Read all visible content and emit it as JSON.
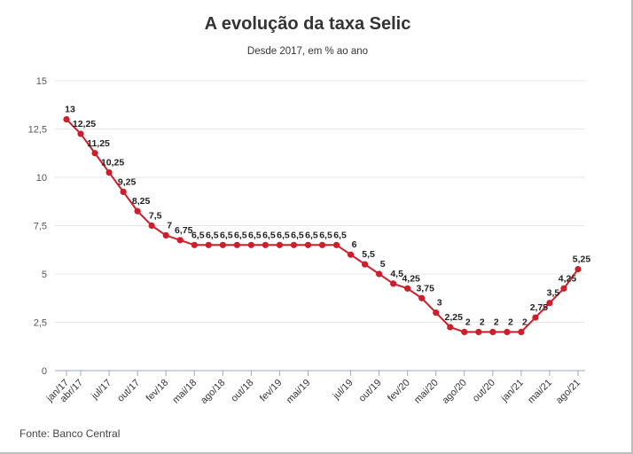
{
  "title": "A evolução da taxa Selic",
  "subtitle": "Desde 2017, em % ao ano",
  "source": "Fonte: Banco Central",
  "colors": {
    "line": "#cc1f2a",
    "grid": "#e6e6e6",
    "axis": "#9aa9c7"
  },
  "chart_data": {
    "type": "line",
    "title": "A evolução da taxa Selic",
    "subtitle": "Desde 2017, em % ao ano",
    "ylim": [
      0,
      15
    ],
    "yticks": [
      0,
      2.5,
      5,
      7.5,
      10,
      12.5,
      15
    ],
    "ytick_labels": [
      "0",
      "2,5",
      "5",
      "7,5",
      "10",
      "12,5",
      "15"
    ],
    "grid": true,
    "x_labels": [
      "jan/17",
      "abr/17",
      "jul/17",
      "out/17",
      "fev/18",
      "mai/18",
      "ago/18",
      "out/18",
      "fev/19",
      "mai/19",
      "jul/19",
      "out/19",
      "fev/20",
      "mai/20",
      "ago/20",
      "out/20",
      "jan/21",
      "mai/21",
      "ago/21"
    ],
    "x_label_index": [
      0,
      1,
      3,
      5,
      7,
      9,
      11,
      13,
      15,
      17,
      20,
      22,
      24,
      26,
      28,
      30,
      32,
      34,
      36
    ],
    "values": [
      13,
      12.25,
      11.25,
      10.25,
      9.25,
      8.25,
      7.5,
      7,
      6.75,
      6.5,
      6.5,
      6.5,
      6.5,
      6.5,
      6.5,
      6.5,
      6.5,
      6.5,
      6.5,
      6.5,
      6,
      5.5,
      5,
      4.5,
      4.25,
      3.75,
      3,
      2.25,
      2,
      2,
      2,
      2,
      2,
      2.75,
      3.5,
      4.25,
      5.25
    ],
    "data_labels": [
      "13",
      "12,25",
      "11,25",
      "10,25",
      "9,25",
      "8,25",
      "7,5",
      "7",
      "6,75",
      "6,5",
      "6,5",
      "6,5",
      "6,5",
      "6,5",
      "6,5",
      "6,5",
      "6,5",
      "6,5",
      "6,5",
      "6,5",
      "6",
      "5,5",
      "5",
      "4,5",
      "4,25",
      "3,75",
      "3",
      "2,25",
      "2",
      "2",
      "2",
      "2",
      "2",
      "2,75",
      "3,5",
      "4,25",
      "5,25"
    ],
    "series": [
      {
        "values_ref": "values"
      }
    ]
  }
}
